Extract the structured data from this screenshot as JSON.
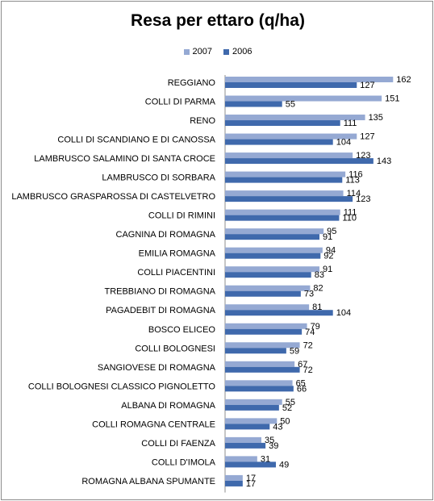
{
  "chart_data": {
    "type": "bar",
    "orientation": "horizontal",
    "title": "Resa per ettaro (q/ha)",
    "xlabel": "",
    "ylabel": "",
    "xlim": [
      0,
      170
    ],
    "grid": false,
    "legend_position": "top",
    "categories": [
      "REGGIANO",
      "COLLI DI PARMA",
      "RENO",
      "COLLI DI SCANDIANO E DI CANOSSA",
      "LAMBRUSCO SALAMINO DI SANTA CROCE",
      "LAMBRUSCO DI SORBARA",
      "LAMBRUSCO GRASPAROSSA DI CASTELVETRO",
      "COLLI DI RIMINI",
      "CAGNINA DI ROMAGNA",
      "EMILIA ROMAGNA",
      "COLLI PIACENTINI",
      "TREBBIANO DI ROMAGNA",
      "PAGADEBIT DI ROMAGNA",
      "BOSCO ELICEO",
      "COLLI BOLOGNESI",
      "SANGIOVESE DI ROMAGNA",
      "COLLI BOLOGNESI CLASSICO PIGNOLETTO",
      "ALBANA DI ROMAGNA",
      "COLLI ROMAGNA CENTRALE",
      "COLLI DI FAENZA",
      "COLLI D'IMOLA",
      "ROMAGNA ALBANA SPUMANTE"
    ],
    "series": [
      {
        "name": "2007",
        "color": "#95a9d3",
        "values": [
          162,
          151,
          135,
          127,
          123,
          116,
          114,
          111,
          95,
          94,
          91,
          82,
          81,
          79,
          72,
          67,
          65,
          55,
          50,
          35,
          31,
          17
        ]
      },
      {
        "name": "2006",
        "color": "#3f69ac",
        "values": [
          127,
          55,
          111,
          104,
          143,
          113,
          123,
          110,
          91,
          92,
          83,
          73,
          104,
          74,
          59,
          72,
          66,
          52,
          43,
          39,
          49,
          17
        ]
      }
    ]
  }
}
